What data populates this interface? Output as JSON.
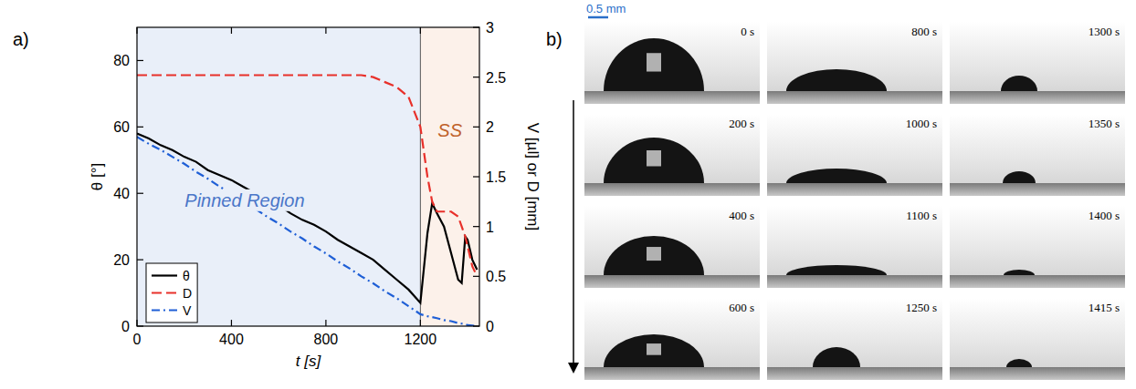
{
  "chart_data": {
    "type": "line",
    "panel_label": "a)",
    "x_label": "t [s]",
    "y_label": "θ [°]",
    "y2_label": "V [µl] or D [mm]",
    "xlim": [
      0,
      1450
    ],
    "xticks": [
      0,
      400,
      800,
      1200
    ],
    "ylim": [
      0,
      90
    ],
    "yticks": [
      0,
      20,
      40,
      60,
      80
    ],
    "y2lim": [
      0,
      3
    ],
    "y2ticks": [
      0,
      0.5,
      1,
      1.5,
      2,
      2.5,
      3
    ],
    "grid": false,
    "legend": "lower left",
    "regions": [
      {
        "label": "Pinned Region",
        "start": 0,
        "end": 1200,
        "color": "#e9eff9",
        "text_color": "#4a76c8"
      },
      {
        "label": "SS",
        "start": 1200,
        "end": 1450,
        "color": "#fcf1ea",
        "text_color": "#c0622a"
      }
    ],
    "x": [
      0,
      50,
      100,
      150,
      200,
      250,
      300,
      350,
      400,
      450,
      500,
      550,
      600,
      650,
      700,
      750,
      800,
      850,
      900,
      950,
      1000,
      1050,
      1100,
      1150,
      1200,
      1230,
      1250,
      1270,
      1300,
      1330,
      1360,
      1375,
      1390,
      1400,
      1420,
      1440
    ],
    "series": [
      {
        "name": "θ",
        "color": "#000000",
        "line_style": "solid",
        "values": [
          58,
          56.5,
          54.5,
          53,
          51,
          49.5,
          47,
          45.5,
          44,
          42,
          40,
          38,
          36.5,
          34,
          32,
          30.5,
          28.5,
          26,
          24,
          22,
          20,
          17,
          14,
          11,
          7,
          28,
          37,
          34,
          30,
          22,
          14,
          13,
          27,
          26,
          20,
          17
        ]
      },
      {
        "name": "D",
        "color": "#e8302a",
        "line_style": "dashed",
        "axis": "y2",
        "values": [
          2.52,
          2.52,
          2.52,
          2.52,
          2.52,
          2.52,
          2.52,
          2.52,
          2.52,
          2.52,
          2.52,
          2.52,
          2.52,
          2.52,
          2.52,
          2.52,
          2.52,
          2.52,
          2.52,
          2.52,
          2.5,
          2.45,
          2.4,
          2.3,
          2.0,
          1.5,
          1.25,
          1.15,
          1.15,
          1.15,
          1.1,
          1.0,
          0.9,
          0.8,
          0.6,
          0.5
        ]
      },
      {
        "name": "V",
        "color": "#1f5fd6",
        "line_style": "dashdot",
        "axis": "y2",
        "values": [
          1.9,
          1.83,
          1.77,
          1.7,
          1.63,
          1.55,
          1.48,
          1.4,
          1.33,
          1.25,
          1.18,
          1.1,
          1.03,
          0.95,
          0.88,
          0.8,
          0.73,
          0.65,
          0.58,
          0.5,
          0.43,
          0.35,
          0.28,
          0.2,
          0.12,
          0.1,
          0.09,
          0.08,
          0.06,
          0.05,
          0.03,
          0.025,
          0.02,
          0.01,
          0.005,
          0
        ]
      }
    ]
  },
  "panel_b": {
    "panel_label": "b)",
    "scale_bar": "0.5 mm",
    "frames": [
      "0 s",
      "200 s",
      "400 s",
      "600 s",
      "800 s",
      "1000 s",
      "1100 s",
      "1250 s",
      "1300 s",
      "1350 s",
      "1400 s",
      "1415 s"
    ]
  }
}
